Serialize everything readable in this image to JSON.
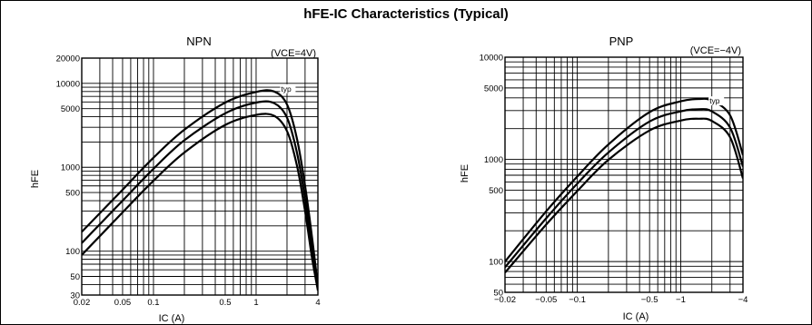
{
  "title": "hFE-IC Characteristics (Typical)",
  "chart_data": [
    {
      "type": "line",
      "title": "NPN",
      "condition": "(VCE=4V)",
      "xlabel": "IC  (A)",
      "ylabel": "hFE",
      "x_scale": "log",
      "y_scale": "log",
      "xlim": [
        0.02,
        4
      ],
      "ylim": [
        30,
        20000
      ],
      "grid": true,
      "x_ticks": [
        {
          "v": 0.02,
          "label": "0.02"
        },
        {
          "v": 0.05,
          "label": "0.05"
        },
        {
          "v": 0.1,
          "label": "0.1"
        },
        {
          "v": 0.5,
          "label": "0.5"
        },
        {
          "v": 1,
          "label": "1"
        },
        {
          "v": 4,
          "label": "4"
        }
      ],
      "y_ticks": [
        {
          "v": 30,
          "label": "30"
        },
        {
          "v": 50,
          "label": "50"
        },
        {
          "v": 100,
          "label": "100"
        },
        {
          "v": 500,
          "label": "500"
        },
        {
          "v": 1000,
          "label": "1000"
        },
        {
          "v": 5000,
          "label": "5000"
        },
        {
          "v": 10000,
          "label": "10000"
        },
        {
          "v": 20000,
          "label": "20000"
        }
      ],
      "annotation": {
        "label": "typ",
        "x": 1.75,
        "y": 8100
      },
      "series": [
        {
          "name": "",
          "x": [
            0.02,
            0.05,
            0.1,
            0.2,
            0.5,
            1,
            1.5,
            2,
            2.5,
            3,
            3.5,
            4
          ],
          "y": [
            170,
            540,
            1300,
            2800,
            5900,
            7900,
            8000,
            5600,
            2200,
            600,
            150,
            38
          ]
        },
        {
          "name": "",
          "x": [
            0.02,
            0.05,
            0.1,
            0.2,
            0.5,
            1,
            1.5,
            2,
            2.5,
            3,
            3.5,
            4
          ],
          "y": [
            125,
            400,
            960,
            2100,
            4400,
            5900,
            5800,
            3900,
            1500,
            420,
            110,
            36
          ]
        },
        {
          "name": "",
          "x": [
            0.02,
            0.05,
            0.1,
            0.2,
            0.5,
            1,
            1.5,
            2,
            2.5,
            3,
            3.5,
            4
          ],
          "y": [
            90,
            290,
            690,
            1500,
            3200,
            4200,
            4100,
            2700,
            1050,
            300,
            85,
            34
          ]
        }
      ]
    },
    {
      "type": "line",
      "title": "PNP",
      "condition": "(VCE=−4V)",
      "xlabel": "IC  (A)",
      "ylabel": "hFE",
      "x_scale": "log",
      "y_scale": "log",
      "xlim": [
        -0.02,
        -4
      ],
      "ylim": [
        50,
        10000
      ],
      "grid": true,
      "x_ticks": [
        {
          "v": -0.02,
          "label": "−0.02"
        },
        {
          "v": -0.05,
          "label": "−0.05"
        },
        {
          "v": -0.1,
          "label": "−0.1"
        },
        {
          "v": -0.5,
          "label": "−0.5"
        },
        {
          "v": -1,
          "label": "−1"
        },
        {
          "v": -4,
          "label": "−4"
        }
      ],
      "y_ticks": [
        {
          "v": 50,
          "label": "50"
        },
        {
          "v": 100,
          "label": "100"
        },
        {
          "v": 500,
          "label": "500"
        },
        {
          "v": 1000,
          "label": "1000"
        },
        {
          "v": 5000,
          "label": "5000"
        },
        {
          "v": 10000,
          "label": "10000"
        }
      ],
      "annotation": {
        "label": "typ",
        "x": -1.9,
        "y": 3550
      },
      "series": [
        {
          "name": "",
          "x": [
            -0.02,
            -0.05,
            -0.1,
            -0.2,
            -0.5,
            -1,
            -1.5,
            -2,
            -3,
            -4
          ],
          "y": [
            100,
            310,
            680,
            1400,
            2900,
            3700,
            3900,
            3750,
            2700,
            1100
          ]
        },
        {
          "name": "",
          "x": [
            -0.02,
            -0.05,
            -0.1,
            -0.2,
            -0.5,
            -1,
            -1.5,
            -2,
            -3,
            -4
          ],
          "y": [
            88,
            265,
            580,
            1170,
            2350,
            2950,
            3100,
            2950,
            2050,
            850
          ]
        },
        {
          "name": "",
          "x": [
            -0.02,
            -0.05,
            -0.1,
            -0.2,
            -0.5,
            -1,
            -1.5,
            -2,
            -3,
            -4
          ],
          "y": [
            78,
            230,
            490,
            990,
            1920,
            2400,
            2500,
            2380,
            1650,
            650
          ]
        }
      ]
    }
  ]
}
